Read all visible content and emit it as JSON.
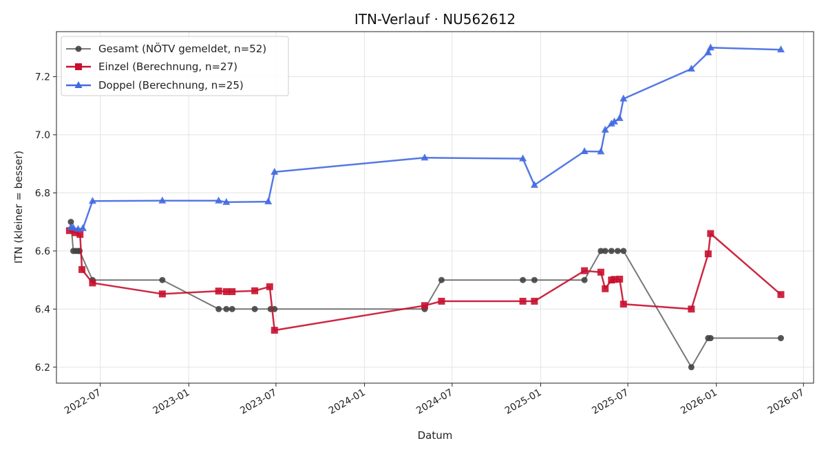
{
  "chart_data": {
    "type": "line",
    "title": "ITN-Verlauf · NU562612",
    "xlabel": "Datum",
    "ylabel": "ITN  (kleiner = besser)",
    "x_axis_type": "date",
    "xlim": [
      "2022-04-01",
      "2026-07-22"
    ],
    "ylim": [
      6.145,
      7.355
    ],
    "x_ticks": [
      "2022-07",
      "2023-01",
      "2023-07",
      "2024-01",
      "2024-07",
      "2025-01",
      "2025-07",
      "2026-01",
      "2026-07"
    ],
    "y_ticks": [
      "6.2",
      "6.4",
      "6.6",
      "6.8",
      "7.0",
      "7.2"
    ],
    "grid": true,
    "legend_position": "top-left",
    "series": [
      {
        "name": "Gesamt (NÖTV gemeldet, n=52)",
        "color": "#555555",
        "marker": "circle",
        "points": [
          [
            "2022-05-01",
            6.7
          ],
          [
            "2022-05-06",
            6.6
          ],
          [
            "2022-05-11",
            6.6
          ],
          [
            "2022-05-16",
            6.6
          ],
          [
            "2022-05-19",
            6.6
          ],
          [
            "2022-06-15",
            6.5
          ],
          [
            "2022-11-07",
            6.5
          ],
          [
            "2023-03-04",
            6.4
          ],
          [
            "2023-03-20",
            6.4
          ],
          [
            "2023-04-01",
            6.4
          ],
          [
            "2023-05-18",
            6.4
          ],
          [
            "2023-06-20",
            6.4
          ],
          [
            "2023-06-28",
            6.4
          ],
          [
            "2024-05-05",
            6.4
          ],
          [
            "2024-06-09",
            6.5
          ],
          [
            "2024-11-25",
            6.5
          ],
          [
            "2024-12-19",
            6.5
          ],
          [
            "2025-04-02",
            6.5
          ],
          [
            "2025-05-06",
            6.6
          ],
          [
            "2025-05-15",
            6.6
          ],
          [
            "2025-05-28",
            6.6
          ],
          [
            "2025-06-10",
            6.6
          ],
          [
            "2025-06-22",
            6.6
          ],
          [
            "2025-11-10",
            6.2
          ],
          [
            "2025-12-15",
            6.3
          ],
          [
            "2025-12-20",
            6.3
          ],
          [
            "2026-05-15",
            6.3
          ]
        ]
      },
      {
        "name": "Einzel (Berechnung, n=27)",
        "color": "#c8102e",
        "marker": "square",
        "points": [
          [
            "2022-04-28",
            6.67
          ],
          [
            "2022-05-10",
            6.663
          ],
          [
            "2022-05-20",
            6.657
          ],
          [
            "2022-05-24",
            6.536
          ],
          [
            "2022-06-15",
            6.49
          ],
          [
            "2022-11-07",
            6.452
          ],
          [
            "2023-03-04",
            6.462
          ],
          [
            "2023-03-20",
            6.46
          ],
          [
            "2023-04-01",
            6.46
          ],
          [
            "2023-05-18",
            6.463
          ],
          [
            "2023-06-18",
            6.477
          ],
          [
            "2023-06-28",
            6.327
          ],
          [
            "2024-05-05",
            6.412
          ],
          [
            "2024-06-09",
            6.427
          ],
          [
            "2024-11-25",
            6.427
          ],
          [
            "2024-12-19",
            6.427
          ],
          [
            "2025-04-02",
            6.532
          ],
          [
            "2025-05-06",
            6.527
          ],
          [
            "2025-05-15",
            6.47
          ],
          [
            "2025-05-28",
            6.5
          ],
          [
            "2025-06-03",
            6.502
          ],
          [
            "2025-06-14",
            6.503
          ],
          [
            "2025-06-22",
            6.417
          ],
          [
            "2025-11-10",
            6.4
          ],
          [
            "2025-12-15",
            6.59
          ],
          [
            "2025-12-20",
            6.66
          ],
          [
            "2026-05-15",
            6.45
          ]
        ]
      },
      {
        "name": "Doppel (Berechnung, n=25)",
        "color": "#4169e1",
        "marker": "triangle",
        "points": [
          [
            "2022-05-01",
            6.682
          ],
          [
            "2022-05-06",
            6.68
          ],
          [
            "2022-05-16",
            6.675
          ],
          [
            "2022-05-26",
            6.678
          ],
          [
            "2022-06-15",
            6.772
          ],
          [
            "2022-11-07",
            6.773
          ],
          [
            "2023-03-04",
            6.773
          ],
          [
            "2023-03-20",
            6.768
          ],
          [
            "2023-06-15",
            6.77
          ],
          [
            "2023-06-28",
            6.872
          ],
          [
            "2024-05-05",
            6.921
          ],
          [
            "2024-11-25",
            6.918
          ],
          [
            "2024-12-19",
            6.827
          ],
          [
            "2025-04-02",
            6.943
          ],
          [
            "2025-05-06",
            6.942
          ],
          [
            "2025-05-15",
            7.017
          ],
          [
            "2025-05-28",
            7.038
          ],
          [
            "2025-06-03",
            7.045
          ],
          [
            "2025-06-14",
            7.057
          ],
          [
            "2025-06-22",
            7.124
          ],
          [
            "2025-11-10",
            7.227
          ],
          [
            "2025-12-15",
            7.283
          ],
          [
            "2025-12-20",
            7.3
          ],
          [
            "2026-05-15",
            7.293
          ]
        ]
      }
    ]
  }
}
